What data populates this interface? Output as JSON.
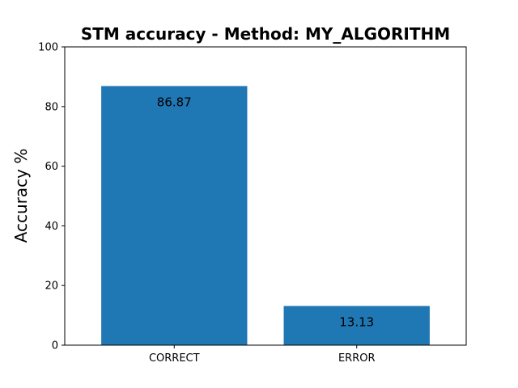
{
  "chart_data": {
    "type": "bar",
    "title": "STM accuracy - Method: MY_ALGORITHM",
    "xlabel": "",
    "ylabel": "Accuracy %",
    "categories": [
      "CORRECT",
      "ERROR"
    ],
    "values": [
      86.87,
      13.13
    ],
    "data_labels": [
      "86.87",
      "13.13"
    ],
    "ylim": [
      0,
      100
    ],
    "yticks": [
      0,
      20,
      40,
      60,
      80,
      100
    ],
    "grid": false,
    "legend": "none",
    "bar_color": "#1f77b4"
  }
}
